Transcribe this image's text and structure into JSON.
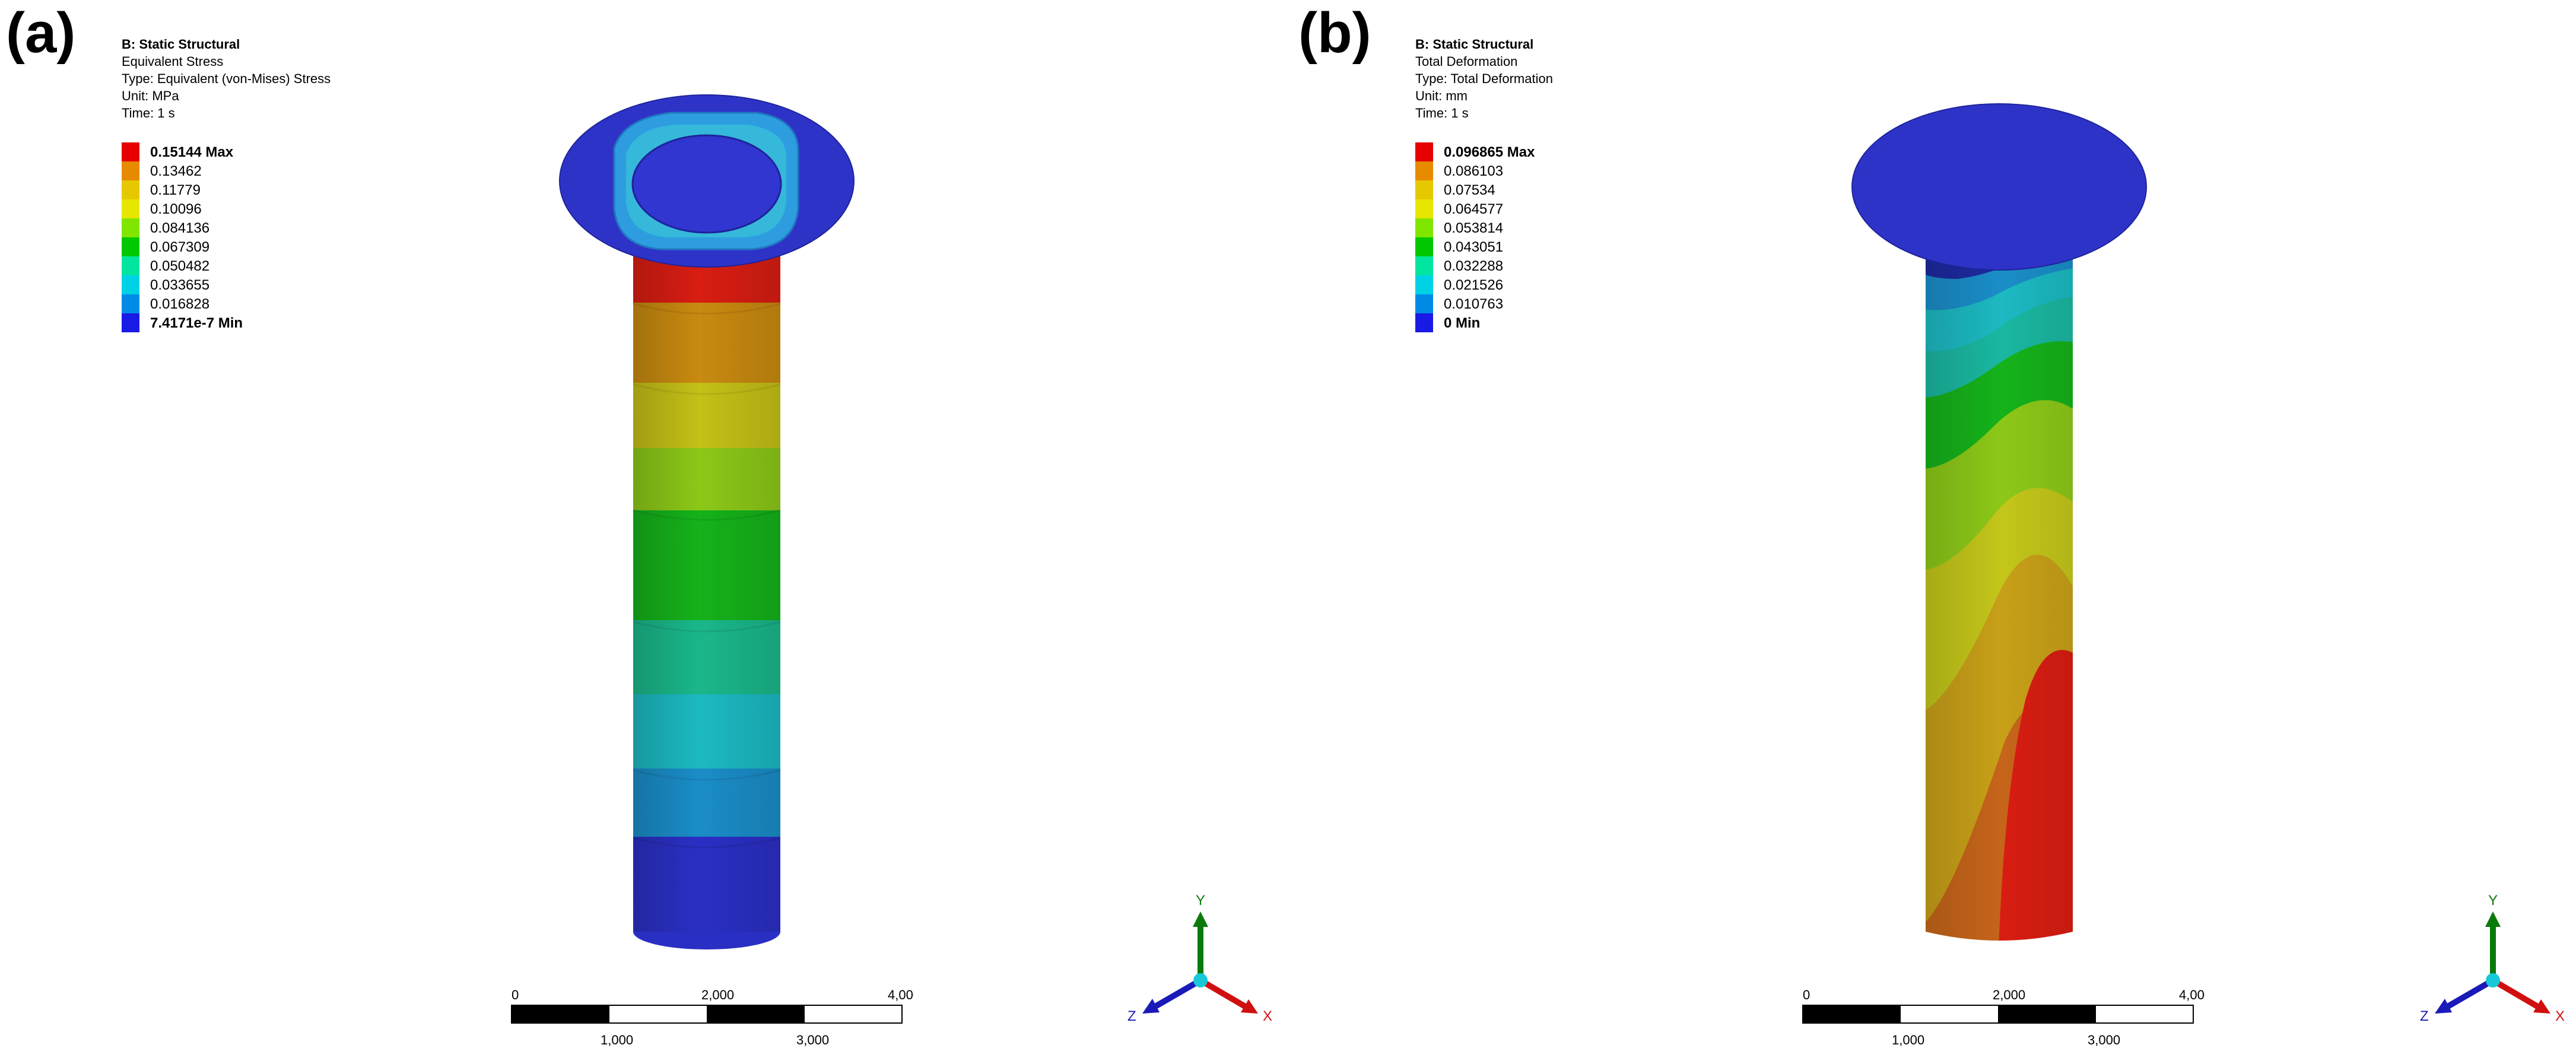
{
  "panels": [
    {
      "label": "(a)",
      "info": {
        "title": "B: Static Structural",
        "result": "Equivalent Stress",
        "type": "Type: Equivalent (von-Mises) Stress",
        "unit": "Unit: MPa",
        "time": "Time: 1 s"
      },
      "legend": [
        {
          "text": "0.15144 Max",
          "color": "#e60000",
          "bold": true
        },
        {
          "text": "0.13462",
          "color": "#e68a00",
          "bold": false
        },
        {
          "text": "0.11779",
          "color": "#e6c800",
          "bold": false
        },
        {
          "text": "0.10096",
          "color": "#e6e600",
          "bold": false
        },
        {
          "text": "0.084136",
          "color": "#80e600",
          "bold": false
        },
        {
          "text": "0.067309",
          "color": "#00c800",
          "bold": false
        },
        {
          "text": "0.050482",
          "color": "#00e6a0",
          "bold": false
        },
        {
          "text": "0.033655",
          "color": "#00d2e6",
          "bold": false
        },
        {
          "text": "0.016828",
          "color": "#008ce6",
          "bold": false
        },
        {
          "text": "7.4171e-7 Min",
          "color": "#1a1ae6",
          "bold": true
        }
      ],
      "scale": {
        "tick_top": [
          "0",
          "2,000",
          "4,000 (mm)"
        ],
        "tick_bottom": [
          "1,000",
          "3,000"
        ]
      },
      "triad": {
        "x": "X",
        "y": "Y",
        "z": "Z"
      }
    },
    {
      "label": "(b)",
      "info": {
        "title": "B: Static Structural",
        "result": "Total Deformation",
        "type": "Type: Total Deformation",
        "unit": "Unit: mm",
        "time": "Time: 1 s"
      },
      "legend": [
        {
          "text": "0.096865 Max",
          "color": "#e60000",
          "bold": true
        },
        {
          "text": "0.086103",
          "color": "#e68a00",
          "bold": false
        },
        {
          "text": "0.07534",
          "color": "#e6c800",
          "bold": false
        },
        {
          "text": "0.064577",
          "color": "#e6e600",
          "bold": false
        },
        {
          "text": "0.053814",
          "color": "#80e600",
          "bold": false
        },
        {
          "text": "0.043051",
          "color": "#00c800",
          "bold": false
        },
        {
          "text": "0.032288",
          "color": "#00e6a0",
          "bold": false
        },
        {
          "text": "0.021526",
          "color": "#00d2e6",
          "bold": false
        },
        {
          "text": "0.010763",
          "color": "#008ce6",
          "bold": false
        },
        {
          "text": "0 Min",
          "color": "#1a1ae6",
          "bold": true
        }
      ],
      "scale": {
        "tick_top": [
          "0",
          "2,000",
          "4,000 (mm)"
        ],
        "tick_bottom": [
          "1,000",
          "3,000"
        ]
      },
      "triad": {
        "x": "X",
        "y": "Y",
        "z": "Z"
      }
    }
  ]
}
